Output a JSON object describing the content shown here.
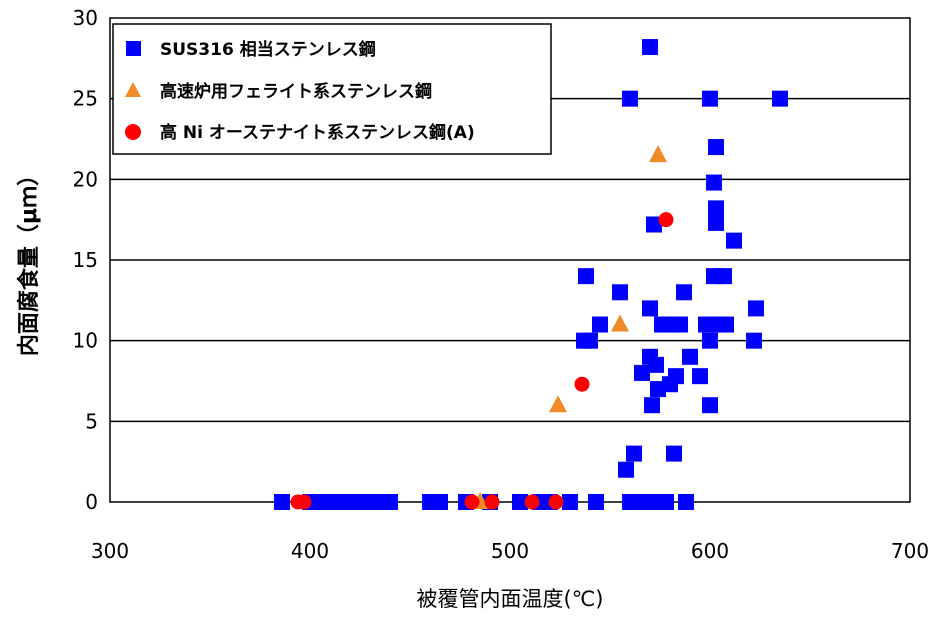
{
  "chart_data": {
    "type": "scatter",
    "title": "",
    "xlabel": "被覆管内面温度(℃)",
    "ylabel": "内面腐食量（μｍ）",
    "xlim": [
      300,
      700
    ],
    "ylim": [
      0,
      30
    ],
    "xticks": [
      "300",
      "400",
      "500",
      "600",
      "700"
    ],
    "yticks": [
      "0",
      "5",
      "10",
      "15",
      "20",
      "25",
      "30"
    ],
    "grid": "horizontal",
    "legend_position": "top-left",
    "series": [
      {
        "name": "SUS316 相当ステンレス鋼",
        "marker": "square",
        "color": "#0000ff",
        "points": [
          [
            386,
            0
          ],
          [
            400,
            0
          ],
          [
            405,
            0
          ],
          [
            410,
            0
          ],
          [
            415,
            0
          ],
          [
            420,
            0
          ],
          [
            425,
            0
          ],
          [
            430,
            0
          ],
          [
            435,
            0
          ],
          [
            440,
            0
          ],
          [
            460,
            0
          ],
          [
            465,
            0
          ],
          [
            478,
            0
          ],
          [
            490,
            0
          ],
          [
            505,
            0
          ],
          [
            515,
            0
          ],
          [
            520,
            0
          ],
          [
            530,
            0
          ],
          [
            543,
            0
          ],
          [
            560,
            0
          ],
          [
            565,
            0
          ],
          [
            570,
            0
          ],
          [
            578,
            0
          ],
          [
            588,
            0
          ],
          [
            558,
            2
          ],
          [
            562,
            3
          ],
          [
            582,
            3
          ],
          [
            537,
            10
          ],
          [
            540,
            10
          ],
          [
            545,
            11
          ],
          [
            555,
            13
          ],
          [
            538,
            14
          ],
          [
            566,
            8
          ],
          [
            570,
            9
          ],
          [
            573,
            8.5
          ],
          [
            571,
            6
          ],
          [
            574,
            7
          ],
          [
            580,
            7.3
          ],
          [
            583,
            7.8
          ],
          [
            595,
            7.8
          ],
          [
            570,
            12
          ],
          [
            576,
            11
          ],
          [
            580,
            11
          ],
          [
            585,
            11
          ],
          [
            587,
            13
          ],
          [
            590,
            9
          ],
          [
            598,
            11
          ],
          [
            600,
            10
          ],
          [
            603,
            11
          ],
          [
            608,
            11
          ],
          [
            600,
            6
          ],
          [
            602,
            14
          ],
          [
            607,
            14
          ],
          [
            603,
            17.3
          ],
          [
            603,
            18.2
          ],
          [
            602,
            19.8
          ],
          [
            603,
            22
          ],
          [
            612,
            16.2
          ],
          [
            572,
            17.2
          ],
          [
            570,
            28.2
          ],
          [
            560,
            25
          ],
          [
            600,
            25
          ],
          [
            635,
            25
          ],
          [
            622,
            10
          ],
          [
            623,
            12
          ]
        ]
      },
      {
        "name": "高速炉用フェライト系ステンレス鋼",
        "marker": "triangle",
        "color": "#f08c28",
        "points": [
          [
            485,
            0
          ],
          [
            524,
            6
          ],
          [
            555,
            11
          ],
          [
            574,
            21.5
          ]
        ]
      },
      {
        "name": "高 Ni オーステナイト系ステンレス鋼(A)",
        "marker": "circle",
        "color": "#ff0000",
        "points": [
          [
            394,
            0
          ],
          [
            397,
            0
          ],
          [
            481,
            0
          ],
          [
            491,
            0
          ],
          [
            511,
            0
          ],
          [
            523,
            0
          ],
          [
            536,
            7.3
          ],
          [
            578,
            17.5
          ]
        ]
      }
    ]
  }
}
